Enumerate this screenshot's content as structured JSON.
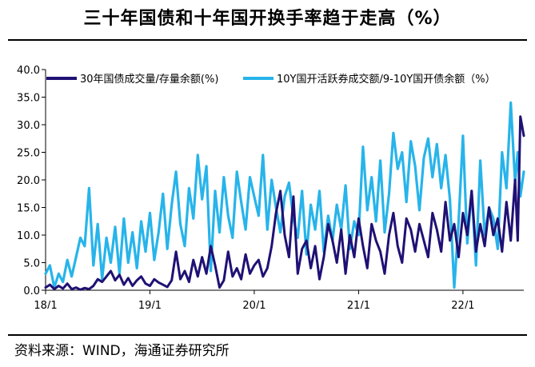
{
  "title": "三十年国债和十年国开换手率趋于走高（%）",
  "source": "资料来源：WIND，海通证券研究所",
  "colors": {
    "series1": "#1f1174",
    "series2": "#27b4ea",
    "axis": "#000000"
  },
  "chart_data": {
    "type": "line",
    "title": "三十年国债和十年国开换手率趋于走高（%）",
    "xlabel": "",
    "ylabel": "",
    "ylim": [
      0,
      40
    ],
    "yticks": [
      "0.0",
      "5.0",
      "10.0",
      "15.0",
      "20.0",
      "25.0",
      "30.0",
      "35.0",
      "40.0"
    ],
    "x_range": [
      0,
      55
    ],
    "xticks": [
      {
        "label": "18/1",
        "x": 0
      },
      {
        "label": "19/1",
        "x": 12
      },
      {
        "label": "20/1",
        "x": 24
      },
      {
        "label": "21/1",
        "x": 36
      },
      {
        "label": "22/1",
        "x": 48
      }
    ],
    "legend_position": "top",
    "series": [
      {
        "name": "30年国债成交量/存量余额(%)",
        "x": [
          0,
          0.5,
          1,
          1.5,
          2,
          2.5,
          3,
          3.5,
          4,
          4.5,
          5,
          5.5,
          6,
          6.5,
          7,
          7.5,
          8,
          8.5,
          9,
          9.5,
          10,
          10.5,
          11,
          11.5,
          12,
          12.5,
          13,
          13.5,
          14,
          14.5,
          15,
          15.5,
          16,
          16.5,
          17,
          17.5,
          18,
          18.5,
          19,
          19.5,
          20,
          20.5,
          21,
          21.5,
          22,
          22.5,
          23,
          23.5,
          24,
          24.5,
          25,
          25.5,
          26,
          26.5,
          27,
          27.5,
          28,
          28.5,
          29,
          29.5,
          30,
          30.5,
          31,
          31.5,
          32,
          32.5,
          33,
          33.5,
          34,
          34.5,
          35,
          35.5,
          36,
          36.5,
          37,
          37.5,
          38,
          38.5,
          39,
          39.5,
          40,
          40.5,
          41,
          41.5,
          42,
          42.5,
          43,
          43.5,
          44,
          44.5,
          45,
          45.5,
          46,
          46.5,
          47,
          47.5,
          48,
          48.5,
          49,
          49.5,
          50,
          50.5,
          51,
          51.5,
          52,
          52.5,
          53,
          53.5,
          54,
          54.3,
          54.6,
          55
        ],
        "values": [
          0.5,
          1,
          0.2,
          0.8,
          0.3,
          1.2,
          0.2,
          0.5,
          0.1,
          0.4,
          0.2,
          0.8,
          2.0,
          1.5,
          2.5,
          3.5,
          1.8,
          2.8,
          1.0,
          2.2,
          0.8,
          1.8,
          2.5,
          1.2,
          0.8,
          2.0,
          1.4,
          1.0,
          0.6,
          1.8,
          7.0,
          2.0,
          3.5,
          1.5,
          5.5,
          2.5,
          6.0,
          3.0,
          8.0,
          4.5,
          0.5,
          1.8,
          7.0,
          2.5,
          4.0,
          2.0,
          6.5,
          3.0,
          4.5,
          5.5,
          2.5,
          4.0,
          8.0,
          14.0,
          18.0,
          10.0,
          6.0,
          17.0,
          3.0,
          7.5,
          9.0,
          4.0,
          8.0,
          2.0,
          6.0,
          12.0,
          9.0,
          5.0,
          11.0,
          3.0,
          10.0,
          6.0,
          13.0,
          8.0,
          4.0,
          12.0,
          9.0,
          7.0,
          3.0,
          10.0,
          14.0,
          8.0,
          5.0,
          13.0,
          11.0,
          7.0,
          12.0,
          9.0,
          6.0,
          14.0,
          11.0,
          7.0,
          16.0,
          9.0,
          12.0,
          6.0,
          14.0,
          10.0,
          18.0,
          7.0,
          12.0,
          8.0,
          15.0,
          10.0,
          13.0,
          7.0,
          16.0,
          9.0,
          20.0,
          9.0,
          31.5,
          28.0
        ]
      },
      {
        "name": "10Y国开活跃券成交额/9-10Y国开债余额（%）",
        "x": [
          0,
          0.5,
          1,
          1.5,
          2,
          2.5,
          3,
          3.5,
          4,
          4.5,
          5,
          5.5,
          6,
          6.5,
          7,
          7.5,
          8,
          8.5,
          9,
          9.5,
          10,
          10.5,
          11,
          11.5,
          12,
          12.5,
          13,
          13.5,
          14,
          14.5,
          15,
          15.5,
          16,
          16.5,
          17,
          17.5,
          18,
          18.5,
          19,
          19.5,
          20,
          20.5,
          21,
          21.5,
          22,
          22.5,
          23,
          23.5,
          24,
          24.5,
          25,
          25.5,
          26,
          26.5,
          27,
          27.5,
          28,
          28.5,
          29,
          29.5,
          30,
          30.5,
          31,
          31.5,
          32,
          32.5,
          33,
          33.5,
          34,
          34.5,
          35,
          35.5,
          36,
          36.5,
          37,
          37.5,
          38,
          38.5,
          39,
          39.5,
          40,
          40.5,
          41,
          41.5,
          42,
          42.5,
          43,
          43.5,
          44,
          44.5,
          45,
          45.5,
          46,
          46.5,
          47,
          47.5,
          48,
          48.5,
          49,
          49.5,
          50,
          50.5,
          51,
          51.5,
          52,
          52.5,
          53,
          53.5,
          54,
          54.3,
          54.6,
          55
        ],
        "values": [
          3.0,
          4.5,
          0.5,
          3.0,
          1.5,
          5.5,
          2.5,
          6.0,
          9.5,
          8.0,
          18.5,
          4.5,
          12.0,
          2.0,
          9.5,
          5.0,
          11.5,
          3.0,
          13.0,
          5.0,
          10.5,
          4.0,
          12.5,
          7.0,
          14.0,
          5.5,
          10.5,
          17.5,
          7.5,
          15.5,
          21.5,
          12.0,
          8.0,
          18.5,
          13.0,
          24.5,
          16.5,
          22.5,
          3.5,
          18.0,
          10.5,
          20.5,
          13.5,
          9.5,
          21.5,
          16.0,
          11.0,
          20.5,
          17.0,
          13.5,
          24.5,
          11.0,
          20.0,
          15.0,
          10.5,
          17.0,
          19.5,
          13.0,
          9.5,
          18.0,
          6.5,
          15.5,
          11.0,
          18.0,
          7.0,
          13.5,
          9.0,
          15.5,
          11.0,
          19.0,
          7.5,
          12.5,
          10.0,
          26.0,
          14.5,
          20.5,
          12.5,
          23.5,
          10.5,
          17.5,
          28.5,
          22.0,
          25.0,
          16.0,
          27.0,
          22.5,
          14.5,
          24.0,
          27.5,
          20.5,
          26.5,
          18.5,
          24.5,
          16.5,
          0.5,
          12.5,
          28.0,
          8.5,
          18.0,
          4.5,
          23.5,
          10.0,
          15.0,
          13.0,
          7.5,
          25.0,
          18.5,
          34.0,
          19.5,
          25.0,
          17.0,
          21.5
        ]
      }
    ]
  }
}
